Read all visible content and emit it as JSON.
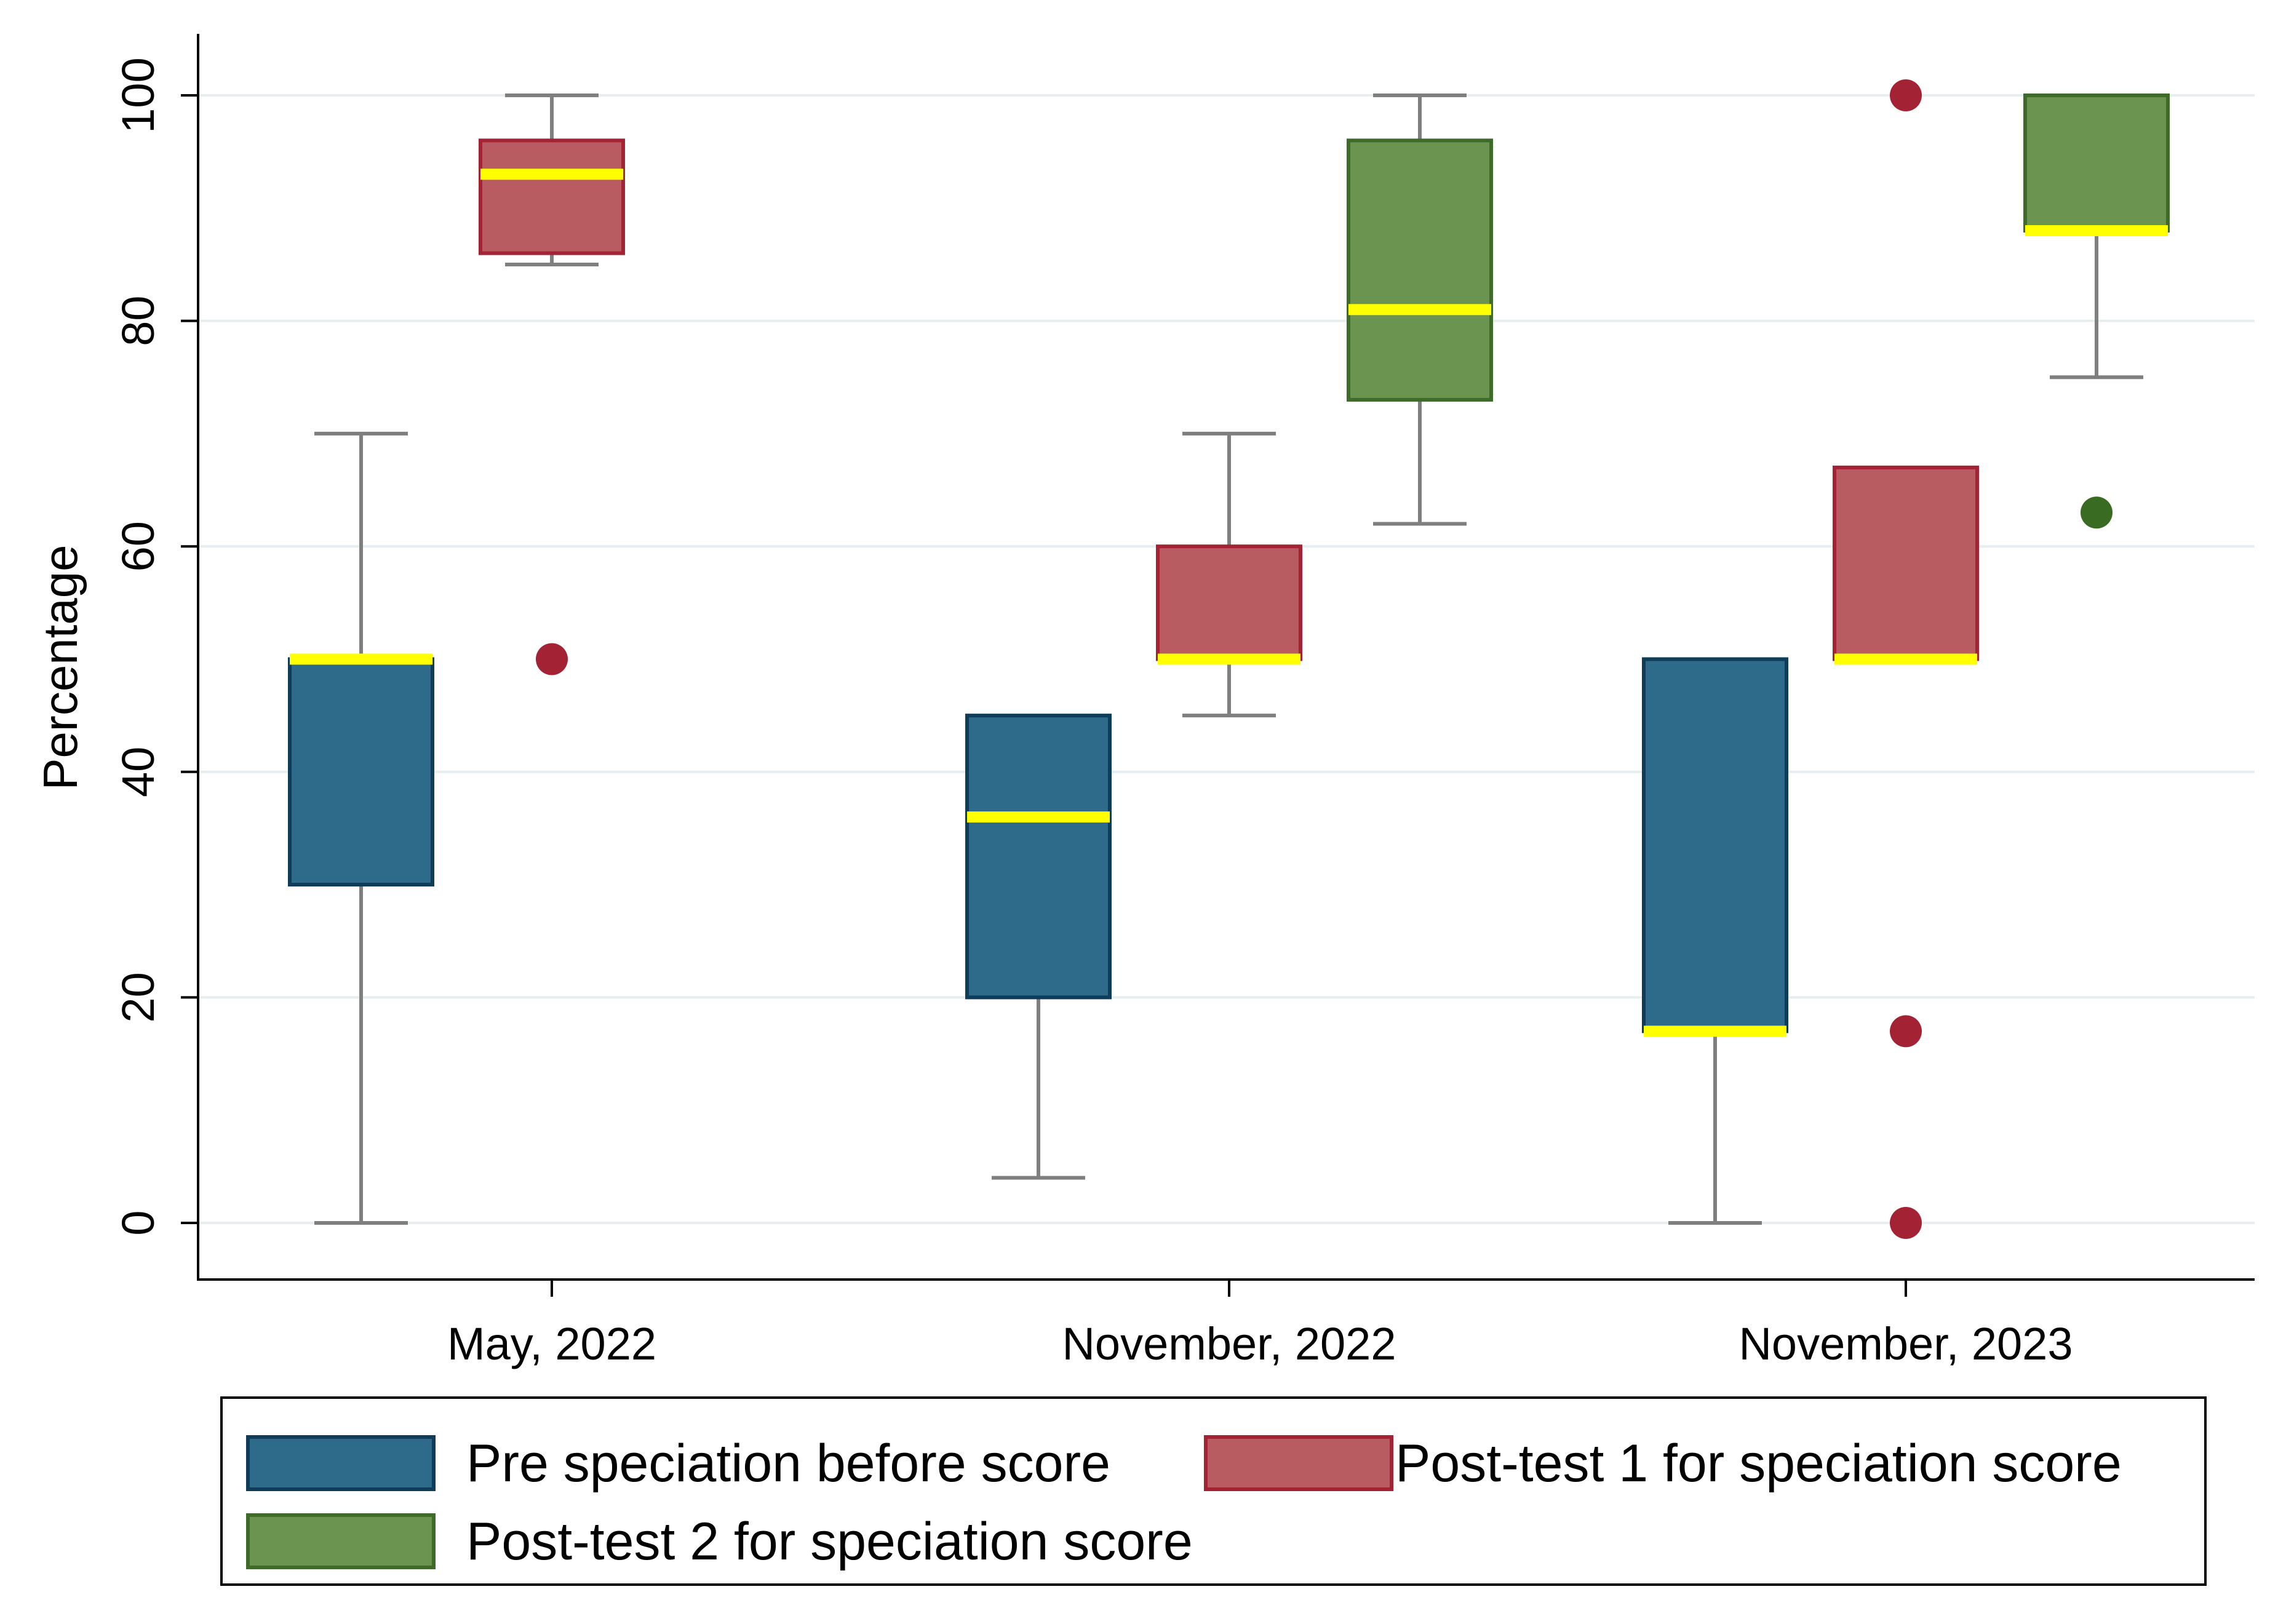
{
  "chart_data": {
    "type": "box",
    "title": "",
    "xlabel": "",
    "ylabel": "Percentage",
    "ylim": [
      -5,
      105
    ],
    "yticks": [
      0,
      20,
      40,
      60,
      80,
      100
    ],
    "grid": true,
    "categories": [
      "May, 2022",
      "November, 2022",
      "November, 2023"
    ],
    "series": [
      {
        "name": "Pre speciation before score",
        "color": "#2e6a8a",
        "edge": "#0f3d59",
        "boxes": [
          {
            "category": "May, 2022",
            "whisker_low": 0,
            "q1": 30,
            "median": 50,
            "q3": 50,
            "whisker_high": 70,
            "outliers": []
          },
          {
            "category": "November, 2022",
            "whisker_low": 4,
            "q1": 20,
            "median": 36,
            "q3": 45,
            "whisker_high": 45,
            "outliers": []
          },
          {
            "category": "November, 2023",
            "whisker_low": 0,
            "q1": 17,
            "median": 17,
            "q3": 50,
            "whisker_high": 50,
            "outliers": []
          }
        ]
      },
      {
        "name": "Post-test 1 for speciation score",
        "color": "#b85c62",
        "edge": "#a32233",
        "outlier_color": "#a32233",
        "boxes": [
          {
            "category": "May, 2022",
            "whisker_low": 85,
            "q1": 86,
            "median": 93,
            "q3": 96,
            "whisker_high": 100,
            "outliers": [
              50
            ]
          },
          {
            "category": "November, 2022",
            "whisker_low": 45,
            "q1": 50,
            "median": 50,
            "q3": 60,
            "whisker_high": 70,
            "outliers": []
          },
          {
            "category": "November, 2023",
            "whisker_low": 50,
            "q1": 50,
            "median": 50,
            "q3": 67,
            "whisker_high": 67,
            "outliers": [
              100,
              17,
              0
            ]
          }
        ]
      },
      {
        "name": "Post-test 2 for speciation score",
        "color": "#6a9450",
        "edge": "#3f6b2a",
        "outlier_color": "#3a6b22",
        "boxes": [
          {
            "category": "November, 2022",
            "whisker_low": 62,
            "q1": 73,
            "median": 81,
            "q3": 96,
            "whisker_high": 100,
            "outliers": []
          },
          {
            "category": "November, 2023",
            "whisker_low": 75,
            "q1": 88,
            "median": 88,
            "q3": 100,
            "whisker_high": 100,
            "outliers": [
              63
            ]
          }
        ]
      }
    ],
    "median_color": "#ffff00",
    "whisker_color": "#7f7f7f",
    "grid_color": "#e6eef0",
    "legend": {
      "placement": "bottom",
      "entries": [
        "Pre speciation before score",
        "Post-test 1 for speciation score",
        "Post-test 2 for speciation score"
      ]
    }
  }
}
